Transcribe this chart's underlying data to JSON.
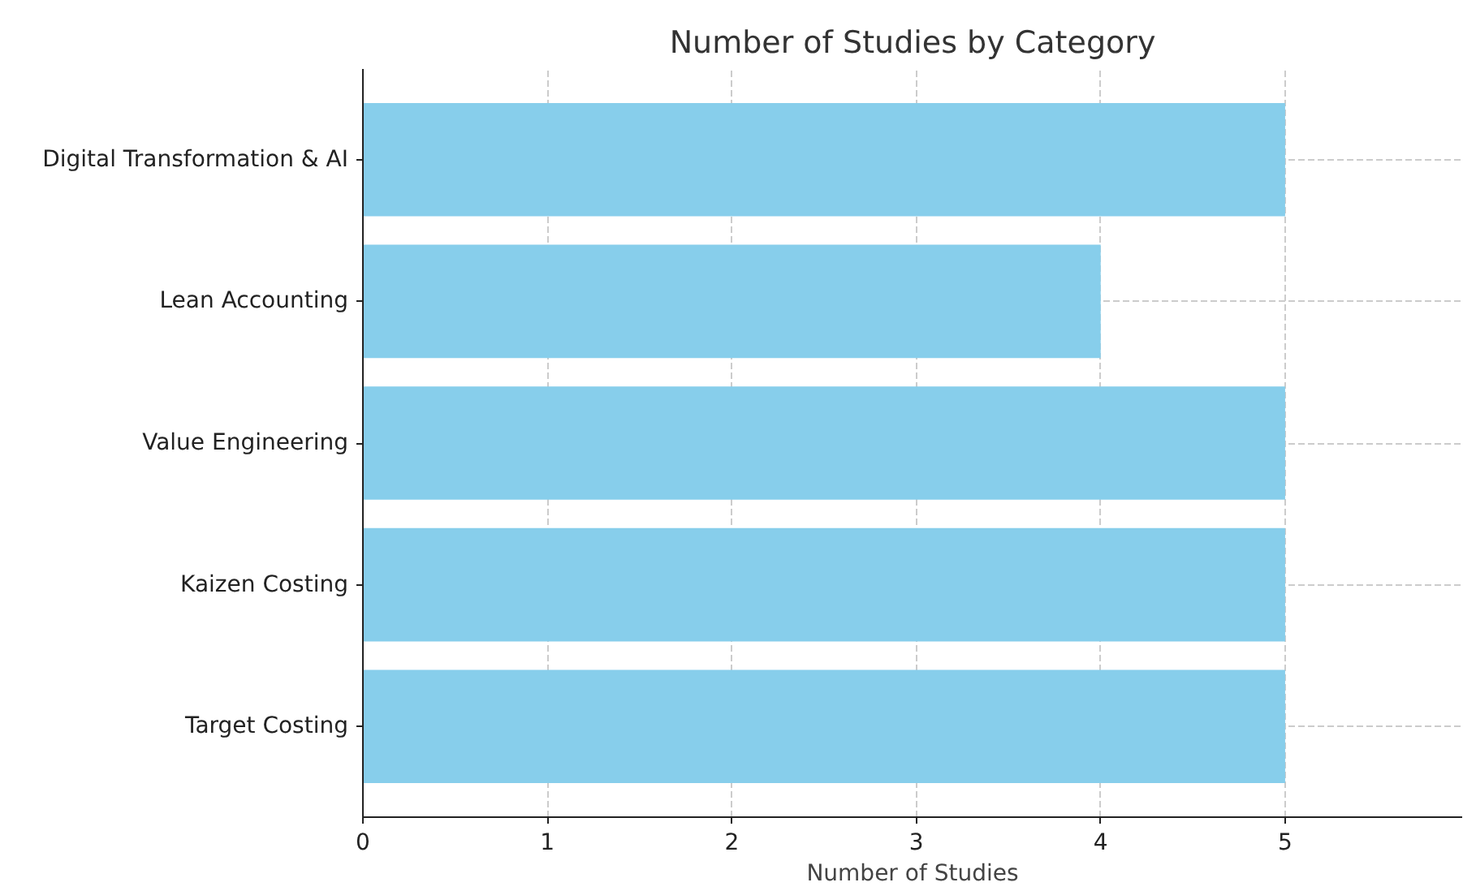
{
  "chart_data": {
    "type": "bar",
    "orientation": "horizontal",
    "title": "Number of Studies by Category",
    "xlabel": "Number of Studies",
    "categories": [
      "Digital Transformation & AI",
      "Lean Accounting",
      "Value Engineering",
      "Kaizen Costing",
      "Target Costing"
    ],
    "values": [
      5,
      4,
      5,
      5,
      5
    ],
    "color": "#87ceeb",
    "xlim": [
      0,
      5.96
    ],
    "xticks": [
      0,
      1,
      2,
      3,
      4,
      5
    ],
    "grid": true
  }
}
